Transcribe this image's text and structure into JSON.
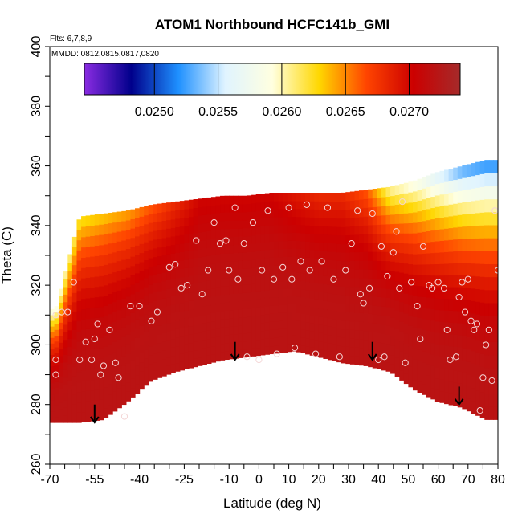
{
  "chart_data": {
    "type": "heatmap",
    "title": "ATOM1 Northbound HCFC141b_GMI",
    "annotations": [
      "Flts: 6,7,8,9",
      "MMDD: 0812,0815,0817,0820"
    ],
    "xlabel": "Latitude (deg N)",
    "ylabel": "Theta (C)",
    "xlim": [
      -70,
      80
    ],
    "ylim": [
      260,
      400
    ],
    "x_ticks": [
      "-70",
      "-55",
      "-40",
      "-25",
      "-10",
      "0",
      "10",
      "20",
      "30",
      "40",
      "50",
      "60",
      "70",
      "80"
    ],
    "x_tick_values": [
      -70,
      -55,
      -40,
      -25,
      -10,
      0,
      10,
      20,
      30,
      40,
      50,
      60,
      70,
      80
    ],
    "y_ticks": [
      "260",
      "280",
      "300",
      "320",
      "340",
      "360",
      "380",
      "400"
    ],
    "y_tick_values": [
      260,
      280,
      300,
      320,
      340,
      360,
      380,
      400
    ],
    "colorbar": {
      "min": 0.02445,
      "max": 0.0274,
      "ticks": [
        "0.0250",
        "0.0255",
        "0.0260",
        "0.0265",
        "0.0270"
      ],
      "tick_values": [
        0.025,
        0.0255,
        0.026,
        0.0265,
        0.027
      ],
      "colors": [
        "#8a2be2",
        "#00008b",
        "#1e90ff",
        "#e0f4ff",
        "#ffffe0",
        "#ffd700",
        "#ff4500",
        "#cc0000",
        "#a52a2a"
      ]
    },
    "field": {
      "lat": [
        -68,
        -60,
        -52,
        -44,
        -36,
        -28,
        -20,
        -12,
        -4,
        4,
        12,
        20,
        28,
        36,
        44,
        52,
        60,
        68,
        76
      ],
      "theta_top": [
        312,
        343,
        344,
        345,
        347,
        348,
        349,
        350,
        350,
        351,
        351,
        351,
        351,
        352,
        353,
        355,
        358,
        360,
        362
      ],
      "theta_bottom": [
        274,
        274,
        275,
        281,
        288,
        291,
        293,
        295,
        296,
        297,
        298,
        296,
        294,
        293,
        291,
        285,
        281,
        279,
        275
      ],
      "colorbar_value_top": [
        0.0258,
        0.0262,
        0.0263,
        0.0264,
        0.0266,
        0.0268,
        0.027,
        0.027,
        0.027,
        0.027,
        0.0269,
        0.0268,
        0.0268,
        0.0266,
        0.026,
        0.0258,
        0.0255,
        0.0252,
        0.0251
      ]
    },
    "observations": [
      {
        "lat": -68,
        "theta": 295
      },
      {
        "lat": -68,
        "theta": 290
      },
      {
        "lat": -68,
        "theta": 310
      },
      {
        "lat": -66,
        "theta": 311
      },
      {
        "lat": -64,
        "theta": 311
      },
      {
        "lat": -62,
        "theta": 321
      },
      {
        "lat": -60,
        "theta": 295
      },
      {
        "lat": -58,
        "theta": 301
      },
      {
        "lat": -56,
        "theta": 295
      },
      {
        "lat": -55,
        "theta": 302
      },
      {
        "lat": -54,
        "theta": 307
      },
      {
        "lat": -53,
        "theta": 290
      },
      {
        "lat": -52,
        "theta": 293
      },
      {
        "lat": -50,
        "theta": 305
      },
      {
        "lat": -48,
        "theta": 294
      },
      {
        "lat": -47,
        "theta": 289
      },
      {
        "lat": -45,
        "theta": 276
      },
      {
        "lat": -43,
        "theta": 313
      },
      {
        "lat": -40,
        "theta": 313
      },
      {
        "lat": -36,
        "theta": 308
      },
      {
        "lat": -34,
        "theta": 311
      },
      {
        "lat": -30,
        "theta": 326
      },
      {
        "lat": -28,
        "theta": 327
      },
      {
        "lat": -26,
        "theta": 319
      },
      {
        "lat": -24,
        "theta": 320
      },
      {
        "lat": -21,
        "theta": 335
      },
      {
        "lat": -19,
        "theta": 317
      },
      {
        "lat": -17,
        "theta": 325
      },
      {
        "lat": -15,
        "theta": 341
      },
      {
        "lat": -13,
        "theta": 334
      },
      {
        "lat": -11,
        "theta": 335
      },
      {
        "lat": -10,
        "theta": 325
      },
      {
        "lat": -8,
        "theta": 346
      },
      {
        "lat": -7,
        "theta": 322
      },
      {
        "lat": -5,
        "theta": 334
      },
      {
        "lat": -4,
        "theta": 296
      },
      {
        "lat": -2,
        "theta": 341
      },
      {
        "lat": 0,
        "theta": 295
      },
      {
        "lat": 1,
        "theta": 325
      },
      {
        "lat": 3,
        "theta": 345
      },
      {
        "lat": 5,
        "theta": 322
      },
      {
        "lat": 6,
        "theta": 297
      },
      {
        "lat": 8,
        "theta": 326
      },
      {
        "lat": 10,
        "theta": 346
      },
      {
        "lat": 11,
        "theta": 322
      },
      {
        "lat": 12,
        "theta": 299
      },
      {
        "lat": 14,
        "theta": 328
      },
      {
        "lat": 16,
        "theta": 347
      },
      {
        "lat": 17,
        "theta": 325
      },
      {
        "lat": 19,
        "theta": 297
      },
      {
        "lat": 21,
        "theta": 328
      },
      {
        "lat": 23,
        "theta": 346
      },
      {
        "lat": 25,
        "theta": 322
      },
      {
        "lat": 27,
        "theta": 296
      },
      {
        "lat": 29,
        "theta": 325
      },
      {
        "lat": 31,
        "theta": 334
      },
      {
        "lat": 33,
        "theta": 345
      },
      {
        "lat": 34,
        "theta": 317
      },
      {
        "lat": 35,
        "theta": 314
      },
      {
        "lat": 37,
        "theta": 319
      },
      {
        "lat": 38,
        "theta": 344
      },
      {
        "lat": 40,
        "theta": 295
      },
      {
        "lat": 41,
        "theta": 333
      },
      {
        "lat": 42,
        "theta": 296
      },
      {
        "lat": 43,
        "theta": 323
      },
      {
        "lat": 45,
        "theta": 331
      },
      {
        "lat": 46,
        "theta": 338
      },
      {
        "lat": 47,
        "theta": 319
      },
      {
        "lat": 48,
        "theta": 348
      },
      {
        "lat": 49,
        "theta": 294
      },
      {
        "lat": 51,
        "theta": 321
      },
      {
        "lat": 53,
        "theta": 313
      },
      {
        "lat": 54,
        "theta": 302
      },
      {
        "lat": 55,
        "theta": 333
      },
      {
        "lat": 57,
        "theta": 320
      },
      {
        "lat": 58,
        "theta": 319
      },
      {
        "lat": 60,
        "theta": 321
      },
      {
        "lat": 62,
        "theta": 319
      },
      {
        "lat": 63,
        "theta": 305
      },
      {
        "lat": 64,
        "theta": 295
      },
      {
        "lat": 66,
        "theta": 296
      },
      {
        "lat": 67,
        "theta": 316
      },
      {
        "lat": 68,
        "theta": 321
      },
      {
        "lat": 69,
        "theta": 311
      },
      {
        "lat": 70,
        "theta": 322
      },
      {
        "lat": 71,
        "theta": 308
      },
      {
        "lat": 72,
        "theta": 305
      },
      {
        "lat": 73,
        "theta": 307
      },
      {
        "lat": 74,
        "theta": 278
      },
      {
        "lat": 75,
        "theta": 289
      },
      {
        "lat": 76,
        "theta": 300
      },
      {
        "lat": 77,
        "theta": 305
      },
      {
        "lat": 78,
        "theta": 288
      },
      {
        "lat": 79,
        "theta": 345
      },
      {
        "lat": 80,
        "theta": 325
      }
    ],
    "arrows": [
      {
        "lat": -55,
        "theta_start": 280,
        "theta_end": 274
      },
      {
        "lat": -8,
        "theta_start": 301,
        "theta_end": 295
      },
      {
        "lat": 38,
        "theta_start": 301,
        "theta_end": 295
      },
      {
        "lat": 67,
        "theta_start": 286,
        "theta_end": 280
      }
    ],
    "grid": false
  }
}
